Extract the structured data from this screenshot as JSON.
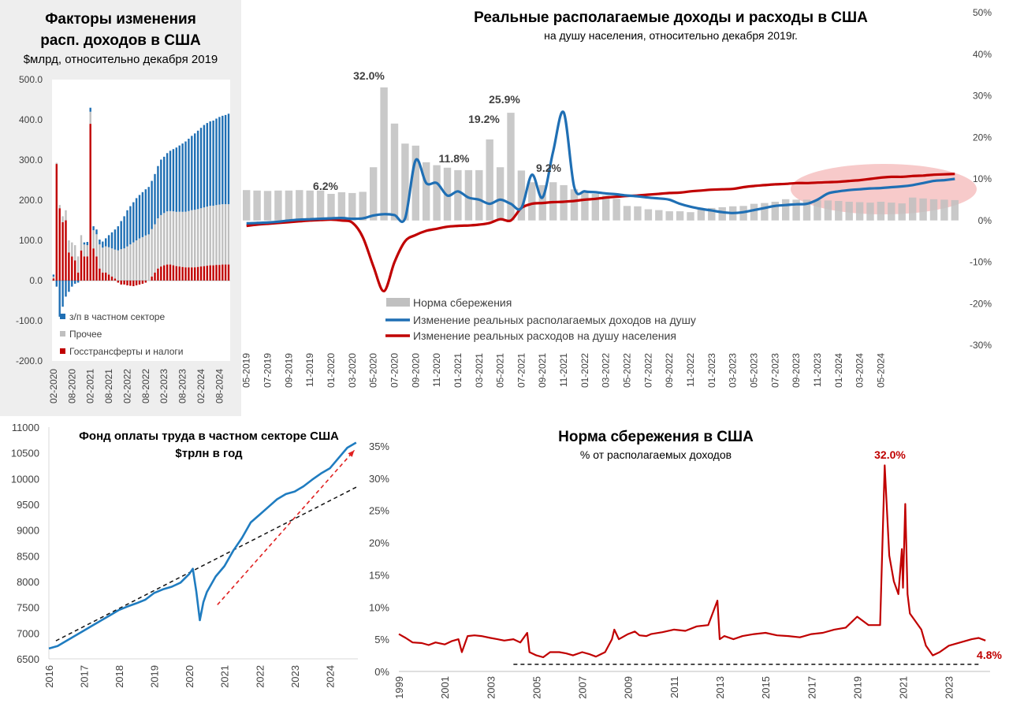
{
  "chart_data": [
    {
      "id": "factors",
      "type": "bar",
      "title": "Факторы изменения расп. доходов в США",
      "title_lines": [
        "Факторы изменения",
        "расп. доходов в США"
      ],
      "subtitle": "$млрд, относительно декабря 2019",
      "ylim": [
        -200,
        500
      ],
      "yticks": [
        "500.0",
        "400.0",
        "300.0",
        "200.0",
        "100.0",
        "0.0",
        "-100.0",
        "-200.0"
      ],
      "ytick_values": [
        500,
        400,
        300,
        200,
        100,
        0,
        -100,
        -200
      ],
      "x_ticks": [
        "02-2020",
        "08-2020",
        "02-2021",
        "08-2021",
        "02-2022",
        "08-2022",
        "02-2023",
        "08-2023",
        "02-2024",
        "08-2024"
      ],
      "colors": {
        "wages": "#1f6fb4",
        "other": "#bfbfbf",
        "transfers": "#c00000"
      },
      "series": [
        {
          "name": "з/п в частном секторе",
          "key": "wages",
          "values": [
            5,
            -15,
            -90,
            -65,
            -40,
            -28,
            -15,
            -8,
            -5,
            0,
            5,
            8,
            10,
            10,
            12,
            12,
            15,
            20,
            30,
            40,
            50,
            60,
            70,
            80,
            90,
            95,
            100,
            105,
            108,
            112,
            115,
            118,
            120,
            125,
            130,
            138,
            140,
            145,
            150,
            155,
            160,
            165,
            170,
            175,
            180,
            185,
            190,
            195,
            200,
            205,
            208,
            210,
            212,
            215,
            218,
            220,
            222,
            225
          ]
        },
        {
          "name": "Прочее",
          "key": "other",
          "values": [
            5,
            3,
            8,
            15,
            25,
            30,
            35,
            38,
            40,
            38,
            30,
            28,
            30,
            45,
            55,
            60,
            62,
            65,
            68,
            70,
            72,
            75,
            78,
            80,
            85,
            90,
            95,
            100,
            105,
            108,
            112,
            115,
            118,
            120,
            125,
            128,
            130,
            132,
            133,
            134,
            135,
            136,
            137,
            138,
            140,
            142,
            143,
            144,
            145,
            146,
            147,
            148,
            148,
            149,
            150,
            150,
            150,
            150
          ]
        },
        {
          "name": "Госстрансферты и налоги",
          "key": "transfers",
          "values": [
            5,
            290,
            180,
            145,
            150,
            70,
            60,
            50,
            20,
            75,
            60,
            60,
            390,
            80,
            60,
            30,
            20,
            20,
            15,
            10,
            5,
            -5,
            -10,
            -10,
            -12,
            -13,
            -14,
            -12,
            -10,
            -8,
            -5,
            0,
            10,
            20,
            30,
            35,
            38,
            40,
            40,
            38,
            36,
            35,
            34,
            33,
            33,
            33,
            33,
            34,
            35,
            36,
            37,
            38,
            38,
            39,
            39,
            40,
            40,
            40
          ]
        }
      ]
    },
    {
      "id": "real",
      "type": "bar+line",
      "title": "Реальные располагаемые доходы и расходы в США",
      "subtitle": "на душу населения, относительно декабря 2019г.",
      "ylim": [
        -0.3,
        0.5
      ],
      "yticks": [
        "50%",
        "40%",
        "30%",
        "20%",
        "10%",
        "0%",
        "-10%",
        "-20%",
        "-30%"
      ],
      "ytick_values": [
        0.5,
        0.4,
        0.3,
        0.2,
        0.1,
        0,
        -0.1,
        -0.2,
        -0.3
      ],
      "x_ticks": [
        "05-2019",
        "07-2019",
        "09-2019",
        "11-2019",
        "01-2020",
        "03-2020",
        "05-2020",
        "07-2020",
        "09-2020",
        "11-2020",
        "01-2021",
        "03-2021",
        "05-2021",
        "07-2021",
        "09-2021",
        "11-2021",
        "01-2022",
        "03-2022",
        "05-2022",
        "07-2022",
        "09-2022",
        "11-2022",
        "01-2023",
        "03-2023",
        "05-2023",
        "07-2023",
        "09-2023",
        "11-2023",
        "01-2024",
        "03-2024",
        "05-2024"
      ],
      "data_labels": [
        {
          "text": "6.2%",
          "x": 7,
          "y": 0.062
        },
        {
          "text": "32.0%",
          "x": 11,
          "y": 0.32
        },
        {
          "text": "11.8%",
          "x": 17,
          "y": 0.118
        },
        {
          "text": "19.2%",
          "x": 21,
          "y": 0.192
        },
        {
          "text": "25.9%",
          "x": 23,
          "y": 0.259
        },
        {
          "text": "9.2%",
          "x": 26,
          "y": 0.092
        }
      ],
      "colors": {
        "saving": "#c0c0c0",
        "income": "#1f6fb4",
        "spending": "#c00000",
        "highlight": "#f4b8b8"
      },
      "legend": [
        "Норма сбережения",
        "Изменение  реальных располагаемых доходов на душу",
        "Изменение  реальных расходов на душу населения"
      ],
      "series": [
        {
          "name": "Норма сбережения",
          "key": "saving",
          "kind": "bar",
          "values": [
            0.073,
            0.072,
            0.071,
            0.072,
            0.072,
            0.073,
            0.072,
            0.072,
            0.064,
            0.068,
            0.066,
            0.069,
            0.128,
            0.32,
            0.233,
            0.185,
            0.18,
            0.14,
            0.133,
            0.127,
            0.121,
            0.121,
            0.121,
            0.195,
            0.128,
            0.259,
            0.12,
            0.092,
            0.085,
            0.092,
            0.085,
            0.075,
            0.07,
            0.064,
            0.06,
            0.052,
            0.035,
            0.034,
            0.027,
            0.025,
            0.022,
            0.022,
            0.02,
            0.027,
            0.03,
            0.032,
            0.034,
            0.035,
            0.04,
            0.042,
            0.045,
            0.051,
            0.05,
            0.05,
            0.049,
            0.048,
            0.047,
            0.045,
            0.044,
            0.043,
            0.045,
            0.043,
            0.041,
            0.055,
            0.053,
            0.051,
            0.05,
            0.049
          ]
        },
        {
          "name": "Изменение  реальных располагаемых доходов на душу",
          "key": "income",
          "kind": "line",
          "values": [
            -0.007,
            -0.006,
            -0.005,
            -0.003,
            0.0,
            0.002,
            0.003,
            0.004,
            0.005,
            0.006,
            0.004,
            0.005,
            0.012,
            0.015,
            0.013,
            0.005,
            0.145,
            0.09,
            0.09,
            0.06,
            0.07,
            0.055,
            0.05,
            0.04,
            0.05,
            0.04,
            0.03,
            0.11,
            0.055,
            0.165,
            0.26,
            0.08,
            0.07,
            0.068,
            0.065,
            0.063,
            0.06,
            0.058,
            0.055,
            0.053,
            0.05,
            0.04,
            0.033,
            0.028,
            0.024,
            0.02,
            0.018,
            0.02,
            0.025,
            0.03,
            0.035,
            0.037,
            0.039,
            0.04,
            0.05,
            0.065,
            0.07,
            0.073,
            0.075,
            0.077,
            0.078,
            0.08,
            0.082,
            0.085,
            0.09,
            0.095,
            0.097,
            0.1
          ]
        },
        {
          "name": "Изменение  реальных расходов на душу населения",
          "key": "spending",
          "kind": "line",
          "values": [
            -0.013,
            -0.01,
            -0.008,
            -0.006,
            -0.004,
            -0.002,
            0.0,
            0.001,
            0.002,
            0.0,
            -0.005,
            -0.04,
            -0.11,
            -0.17,
            -0.1,
            -0.05,
            -0.035,
            -0.025,
            -0.02,
            -0.015,
            -0.013,
            -0.012,
            -0.01,
            -0.006,
            0.003,
            0.0,
            0.03,
            0.04,
            0.042,
            0.044,
            0.045,
            0.047,
            0.05,
            0.052,
            0.055,
            0.057,
            0.059,
            0.06,
            0.062,
            0.064,
            0.066,
            0.067,
            0.07,
            0.072,
            0.074,
            0.075,
            0.076,
            0.08,
            0.083,
            0.085,
            0.087,
            0.088,
            0.09,
            0.09,
            0.091,
            0.092,
            0.093,
            0.095,
            0.097,
            0.1,
            0.103,
            0.105,
            0.105,
            0.107,
            0.108,
            0.11,
            0.111,
            0.112
          ]
        }
      ]
    },
    {
      "id": "payroll",
      "type": "line",
      "title_lines": [
        "Фонд оплаты труда в частном секторе США",
        "$трлн в год"
      ],
      "ylim": [
        6500,
        11000
      ],
      "yticks": [
        "11000",
        "10500",
        "10000",
        "9500",
        "9000",
        "8500",
        "8000",
        "7500",
        "7000",
        "6500"
      ],
      "ytick_values": [
        11000,
        10500,
        10000,
        9500,
        9000,
        8500,
        8000,
        7500,
        7000,
        6500
      ],
      "xlim": [
        2016,
        2024.8
      ],
      "x_ticks": [
        "2016",
        "2017",
        "2018",
        "2019",
        "2020",
        "2021",
        "2022",
        "2023",
        "2024"
      ],
      "x_tick_values": [
        2016,
        2017,
        2018,
        2019,
        2020,
        2021,
        2022,
        2023,
        2024
      ],
      "colors": {
        "line": "#1f7cc0",
        "trend": "#111111",
        "arrow": "#e02020"
      },
      "x": [
        2016.0,
        2016.25,
        2016.5,
        2016.75,
        2017.0,
        2017.25,
        2017.5,
        2017.75,
        2018.0,
        2018.25,
        2018.5,
        2018.75,
        2019.0,
        2019.25,
        2019.5,
        2019.75,
        2020.0,
        2020.1,
        2020.2,
        2020.3,
        2020.4,
        2020.5,
        2020.75,
        2021.0,
        2021.25,
        2021.5,
        2021.75,
        2022.0,
        2022.25,
        2022.5,
        2022.75,
        2023.0,
        2023.25,
        2023.5,
        2023.75,
        2024.0,
        2024.25,
        2024.5,
        2024.75
      ],
      "y": [
        6700,
        6750,
        6850,
        6950,
        7050,
        7150,
        7250,
        7350,
        7450,
        7520,
        7580,
        7650,
        7780,
        7850,
        7900,
        7980,
        8150,
        8250,
        7800,
        7250,
        7600,
        7800,
        8100,
        8300,
        8600,
        8850,
        9150,
        9300,
        9450,
        9600,
        9700,
        9750,
        9850,
        9980,
        10100,
        10200,
        10400,
        10600,
        10700
      ],
      "trend": {
        "x": [
          2016.2,
          2024.8
        ],
        "y": [
          6850,
          9850
        ]
      },
      "arrow": {
        "x": [
          2020.8,
          2024.7
        ],
        "y": [
          7550,
          10550
        ]
      }
    },
    {
      "id": "saving",
      "type": "line",
      "title": "Норма сбережения в США",
      "subtitle": "%  от располагаемых доходов",
      "ylim": [
        0,
        0.35
      ],
      "yticks": [
        "35%",
        "30%",
        "25%",
        "20%",
        "15%",
        "10%",
        "5%",
        "0%"
      ],
      "ytick_values": [
        0.35,
        0.3,
        0.25,
        0.2,
        0.15,
        0.1,
        0.05,
        0
      ],
      "xlim": [
        1999,
        2024.8
      ],
      "x_ticks": [
        "1999",
        "2001",
        "2003",
        "2005",
        "2007",
        "2009",
        "2011",
        "2013",
        "2015",
        "2017",
        "2019",
        "2021",
        "2023"
      ],
      "x_tick_values": [
        1999,
        2001,
        2003,
        2005,
        2007,
        2009,
        2011,
        2013,
        2015,
        2017,
        2019,
        2021,
        2023
      ],
      "data_labels": [
        {
          "text": "32.0%",
          "x": 2020.3,
          "y": 0.32
        },
        {
          "text": "4.8%",
          "x": 2024.6,
          "y": 0.048
        }
      ],
      "colors": {
        "line": "#c00000",
        "baseline": "#111111",
        "label": "#c00000"
      },
      "baseline": {
        "x": [
          2004.0,
          2024.3
        ],
        "y": [
          0.011,
          0.011
        ]
      },
      "x": [
        1999.0,
        1999.3,
        1999.6,
        2000.0,
        2000.3,
        2000.6,
        2001.0,
        2001.3,
        2001.6,
        2001.75,
        2002.0,
        2002.3,
        2002.6,
        2003.0,
        2003.3,
        2003.6,
        2004.0,
        2004.3,
        2004.6,
        2004.7,
        2005.0,
        2005.3,
        2005.6,
        2006.0,
        2006.3,
        2006.6,
        2007.0,
        2007.3,
        2007.6,
        2008.0,
        2008.3,
        2008.4,
        2008.6,
        2009.0,
        2009.3,
        2009.5,
        2009.8,
        2010.0,
        2010.5,
        2011.0,
        2011.5,
        2012.0,
        2012.5,
        2012.9,
        2013.0,
        2013.2,
        2013.6,
        2014.0,
        2014.5,
        2015.0,
        2015.5,
        2016.0,
        2016.5,
        2017.0,
        2017.5,
        2018.0,
        2018.5,
        2019.0,
        2019.5,
        2020.0,
        2020.2,
        2020.3,
        2020.4,
        2020.6,
        2020.8,
        2020.95,
        2021.0,
        2021.1,
        2021.2,
        2021.3,
        2021.5,
        2021.8,
        2022.0,
        2022.3,
        2022.6,
        2023.0,
        2023.5,
        2024.0,
        2024.3,
        2024.6
      ],
      "y": [
        0.058,
        0.052,
        0.045,
        0.044,
        0.041,
        0.045,
        0.042,
        0.047,
        0.05,
        0.03,
        0.055,
        0.056,
        0.055,
        0.052,
        0.05,
        0.048,
        0.05,
        0.045,
        0.06,
        0.03,
        0.025,
        0.022,
        0.03,
        0.03,
        0.028,
        0.025,
        0.03,
        0.027,
        0.023,
        0.03,
        0.05,
        0.065,
        0.05,
        0.058,
        0.062,
        0.056,
        0.055,
        0.058,
        0.061,
        0.065,
        0.063,
        0.07,
        0.072,
        0.11,
        0.05,
        0.055,
        0.05,
        0.055,
        0.058,
        0.06,
        0.056,
        0.055,
        0.053,
        0.058,
        0.06,
        0.065,
        0.068,
        0.085,
        0.072,
        0.072,
        0.32,
        0.25,
        0.18,
        0.14,
        0.12,
        0.19,
        0.13,
        0.26,
        0.12,
        0.09,
        0.08,
        0.065,
        0.04,
        0.025,
        0.03,
        0.04,
        0.045,
        0.05,
        0.052,
        0.048
      ]
    }
  ]
}
